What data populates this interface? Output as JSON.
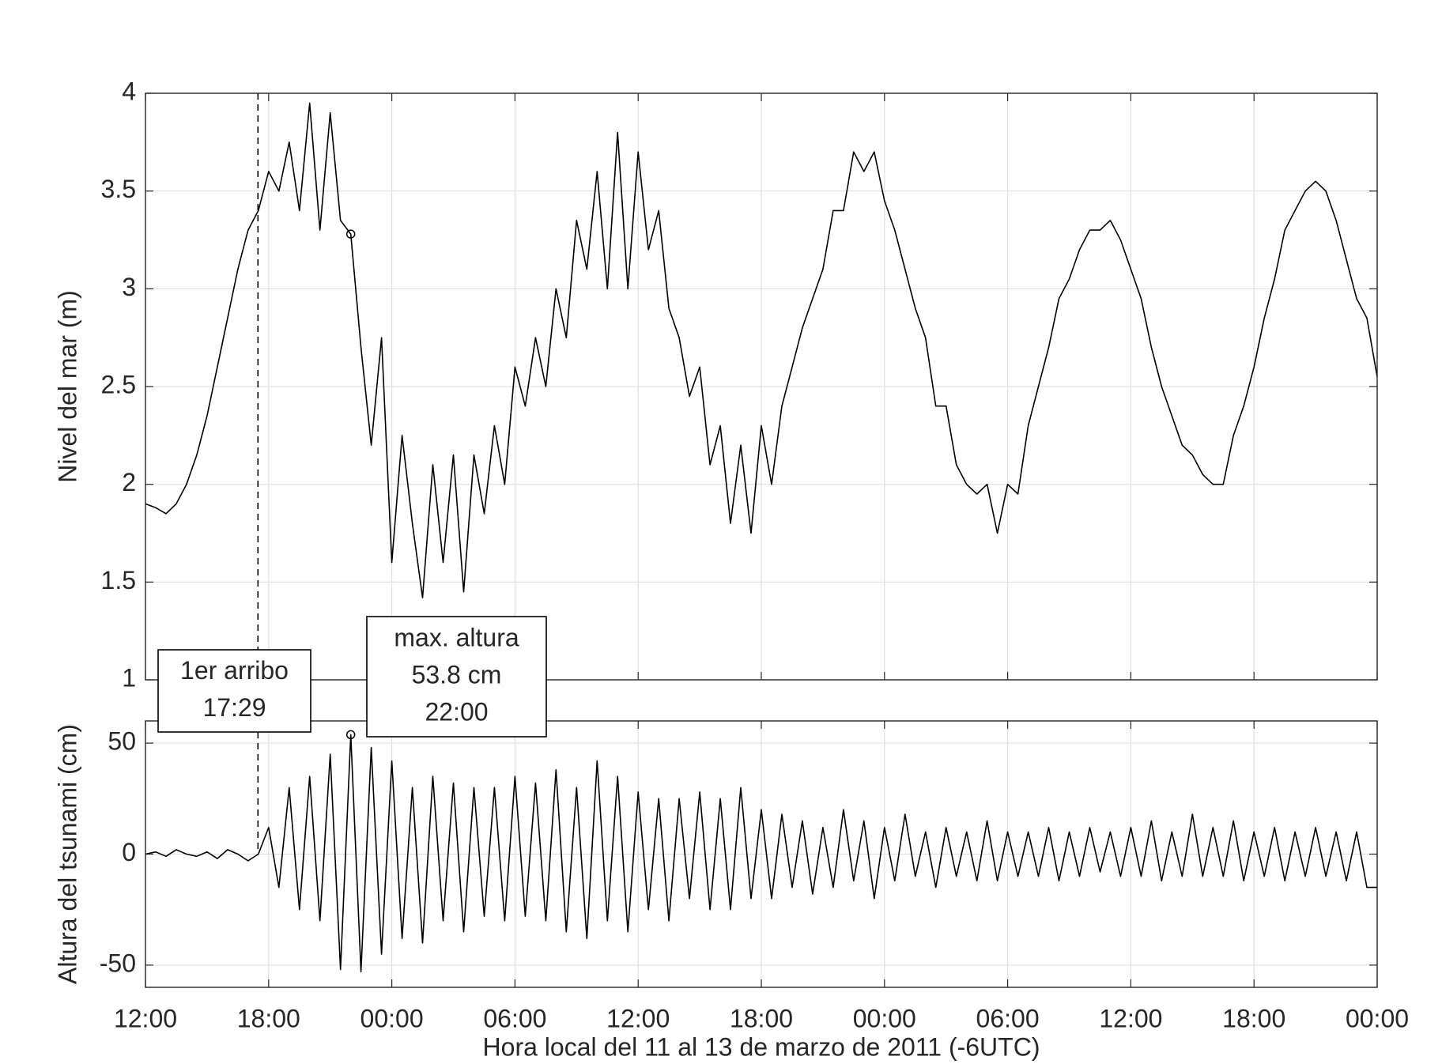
{
  "chart_data": [
    {
      "type": "line",
      "ylabel": "Nivel del mar (m)",
      "xlim": [
        0,
        60
      ],
      "xticks": [
        0,
        6,
        12,
        18,
        24,
        30,
        36,
        42,
        48,
        54,
        60
      ],
      "ylim": [
        1,
        4
      ],
      "yticks": [
        1,
        1.5,
        2,
        2.5,
        3,
        3.5,
        4
      ],
      "grid": true,
      "x": [
        0,
        0.5,
        1,
        1.5,
        2,
        2.5,
        3,
        3.5,
        4,
        4.5,
        5,
        5.5,
        6,
        6.5,
        7,
        7.5,
        8,
        8.5,
        9,
        9.5,
        10,
        10.5,
        11,
        11.5,
        12,
        12.5,
        13,
        13.5,
        14,
        14.5,
        15,
        15.5,
        16,
        16.5,
        17,
        17.5,
        18,
        18.5,
        19,
        19.5,
        20,
        20.5,
        21,
        21.5,
        22,
        22.5,
        23,
        23.5,
        24,
        24.5,
        25,
        25.5,
        26,
        26.5,
        27,
        27.5,
        28,
        28.5,
        29,
        29.5,
        30,
        30.5,
        31,
        31.5,
        32,
        32.5,
        33,
        33.5,
        34,
        34.5,
        35,
        35.5,
        36,
        36.5,
        37,
        37.5,
        38,
        38.5,
        39,
        39.5,
        40,
        40.5,
        41,
        41.5,
        42,
        42.5,
        43,
        43.5,
        44,
        44.5,
        45,
        45.5,
        46,
        46.5,
        47,
        47.5,
        48,
        48.5,
        49,
        49.5,
        50,
        50.5,
        51,
        51.5,
        52,
        52.5,
        53,
        53.5,
        54,
        54.5,
        55,
        55.5,
        56,
        56.5,
        57,
        57.5,
        58,
        58.5,
        59,
        59.5,
        60
      ],
      "series": [
        {
          "color": "#000000",
          "values": [
            1.9,
            1.88,
            1.85,
            1.9,
            2.0,
            2.15,
            2.35,
            2.6,
            2.85,
            3.1,
            3.3,
            3.4,
            3.6,
            3.5,
            3.75,
            3.4,
            3.95,
            3.3,
            3.9,
            3.35,
            3.28,
            2.7,
            2.2,
            2.75,
            1.6,
            2.25,
            1.8,
            1.42,
            2.1,
            1.6,
            2.15,
            1.45,
            2.15,
            1.85,
            2.3,
            2.0,
            2.6,
            2.4,
            2.75,
            2.5,
            3.0,
            2.75,
            3.35,
            3.1,
            3.6,
            3.0,
            3.8,
            3.0,
            3.7,
            3.2,
            3.4,
            2.9,
            2.75,
            2.45,
            2.6,
            2.1,
            2.3,
            1.8,
            2.2,
            1.75,
            2.3,
            2.0,
            2.4,
            2.6,
            2.8,
            2.95,
            3.1,
            3.4,
            3.4,
            3.7,
            3.6,
            3.7,
            3.45,
            3.3,
            3.1,
            2.9,
            2.75,
            2.4,
            2.4,
            2.1,
            2.0,
            1.95,
            2.0,
            1.75,
            2.0,
            1.95,
            2.3,
            2.5,
            2.7,
            2.95,
            3.05,
            3.2,
            3.3,
            3.3,
            3.35,
            3.25,
            3.1,
            2.95,
            2.7,
            2.5,
            2.35,
            2.2,
            2.15,
            2.05,
            2.0,
            2.0,
            2.25,
            2.4,
            2.6,
            2.85,
            3.05,
            3.3,
            3.4,
            3.5,
            3.55,
            3.5,
            3.35,
            3.15,
            2.95,
            2.85,
            2.55
          ]
        }
      ],
      "arrival_x": 5.48,
      "max_index": 20
    },
    {
      "type": "line",
      "ylabel": "Altura del tsunami (cm)",
      "xlabel": "Hora local del 11 al 13 de marzo de 2011 (-6UTC)",
      "xlim": [
        0,
        60
      ],
      "xticks": [
        {
          "value": 0,
          "label": "12:00"
        },
        {
          "value": 6,
          "label": "18:00"
        },
        {
          "value": 12,
          "label": "00:00"
        },
        {
          "value": 18,
          "label": "06:00"
        },
        {
          "value": 24,
          "label": "12:00"
        },
        {
          "value": 30,
          "label": "18:00"
        },
        {
          "value": 36,
          "label": "00:00"
        },
        {
          "value": 42,
          "label": "06:00"
        },
        {
          "value": 48,
          "label": "12:00"
        },
        {
          "value": 54,
          "label": "18:00"
        },
        {
          "value": 60,
          "label": "00:00"
        }
      ],
      "ylim": [
        -60,
        60
      ],
      "yticks": [
        -50,
        0,
        50
      ],
      "grid": true,
      "x": [
        0,
        0.5,
        1,
        1.5,
        2,
        2.5,
        3,
        3.5,
        4,
        4.5,
        5,
        5.5,
        6,
        6.5,
        7,
        7.5,
        8,
        8.5,
        9,
        9.5,
        10,
        10.5,
        11,
        11.5,
        12,
        12.5,
        13,
        13.5,
        14,
        14.5,
        15,
        15.5,
        16,
        16.5,
        17,
        17.5,
        18,
        18.5,
        19,
        19.5,
        20,
        20.5,
        21,
        21.5,
        22,
        22.5,
        23,
        23.5,
        24,
        24.5,
        25,
        25.5,
        26,
        26.5,
        27,
        27.5,
        28,
        28.5,
        29,
        29.5,
        30,
        30.5,
        31,
        31.5,
        32,
        32.5,
        33,
        33.5,
        34,
        34.5,
        35,
        35.5,
        36,
        36.5,
        37,
        37.5,
        38,
        38.5,
        39,
        39.5,
        40,
        40.5,
        41,
        41.5,
        42,
        42.5,
        43,
        43.5,
        44,
        44.5,
        45,
        45.5,
        46,
        46.5,
        47,
        47.5,
        48,
        48.5,
        49,
        49.5,
        50,
        50.5,
        51,
        51.5,
        52,
        52.5,
        53,
        53.5,
        54,
        54.5,
        55,
        55.5,
        56,
        56.5,
        57,
        57.5,
        58,
        58.5,
        59,
        59.5,
        60
      ],
      "series": [
        {
          "color": "#000000",
          "values": [
            0,
            1,
            -1,
            2,
            0,
            -1,
            1,
            -2,
            2,
            0,
            -3,
            0,
            12,
            -15,
            30,
            -25,
            35,
            -30,
            45,
            -52,
            53.8,
            -53,
            48,
            -45,
            42,
            -38,
            30,
            -40,
            35,
            -30,
            32,
            -35,
            30,
            -28,
            30,
            -30,
            35,
            -28,
            32,
            -30,
            38,
            -35,
            30,
            -38,
            42,
            -30,
            35,
            -35,
            28,
            -25,
            25,
            -30,
            25,
            -20,
            28,
            -25,
            25,
            -25,
            30,
            -20,
            20,
            -20,
            18,
            -15,
            15,
            -18,
            12,
            -15,
            20,
            -12,
            15,
            -20,
            12,
            -12,
            18,
            -10,
            10,
            -15,
            12,
            -10,
            10,
            -12,
            15,
            -12,
            10,
            -10,
            10,
            -10,
            12,
            -12,
            10,
            -10,
            12,
            -8,
            10,
            -10,
            12,
            -10,
            15,
            -12,
            10,
            -10,
            18,
            -10,
            12,
            -10,
            15,
            -12,
            10,
            -10,
            12,
            -12,
            10,
            -10,
            12,
            -10,
            10,
            -12,
            10,
            -15,
            -15
          ]
        }
      ],
      "arrival_x": 5.48,
      "max_index": 20,
      "annotations": [
        {
          "lines": [
            "1er arribo",
            "17:29"
          ]
        },
        {
          "lines": [
            "max. altura",
            "53.8 cm",
            "22:00"
          ]
        }
      ]
    }
  ]
}
